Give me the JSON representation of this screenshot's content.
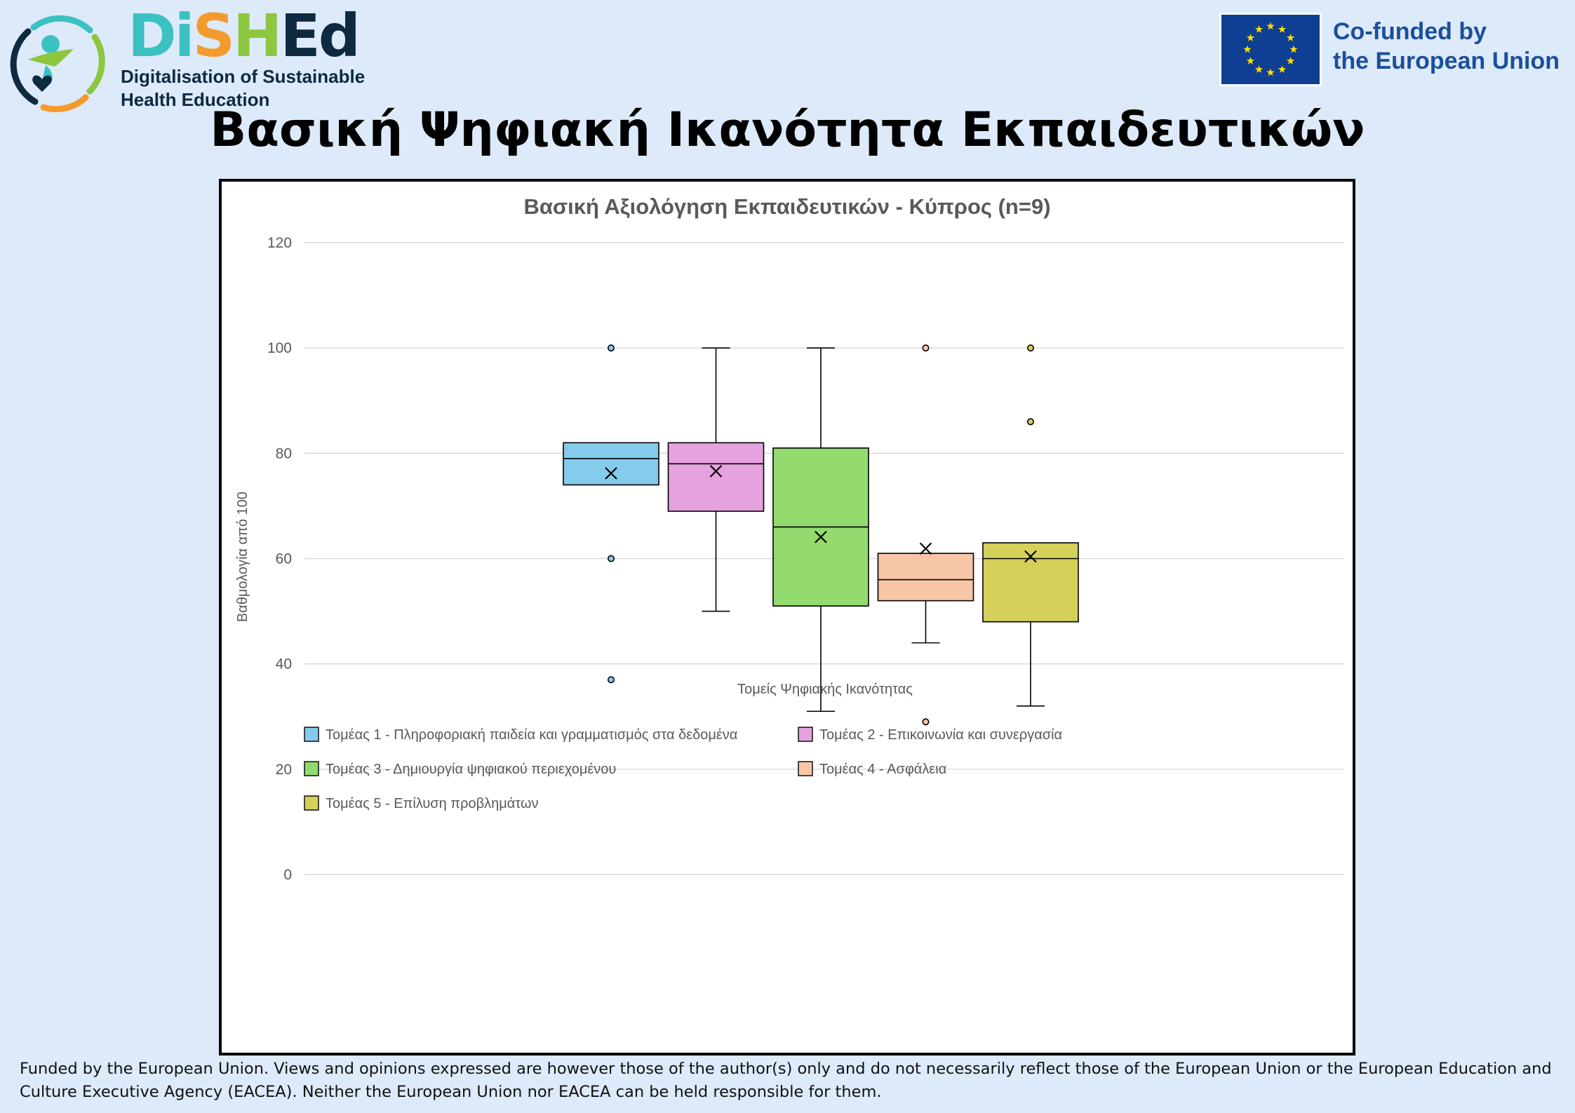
{
  "header": {
    "logo_word_letters": [
      {
        "char": "D",
        "color": "#3cc1c2"
      },
      {
        "char": "i",
        "color": "#3cc1c2"
      },
      {
        "char": "S",
        "color": "#f39a2e"
      },
      {
        "char": "H",
        "color": "#8dc63f"
      },
      {
        "char": "E",
        "color": "#0d2a40"
      },
      {
        "char": "d",
        "color": "#0d2a40"
      }
    ],
    "logo_sub_line1": "Digitalisation of Sustainable",
    "logo_sub_line2": "Health Education",
    "logo_icon": "person-heart-icon",
    "eu_flag_icon": "eu-flag-icon",
    "eu_line1": "Co-funded by",
    "eu_line2": "the European Union"
  },
  "page_title": "Βασική Ψηφιακή Ικανότητα Εκπαιδευτικών",
  "chart_data": {
    "type": "box",
    "title": "Βασική Αξιολόγηση Εκπαιδευτικών - Κύπρος (n=9)",
    "xlabel": "Τομείς Ψηφιακής Ικανότητας",
    "ylabel": "Βαθμολογία από 100",
    "ylim": [
      0,
      120
    ],
    "yticks": [
      "0",
      "20",
      "40",
      "60",
      "80",
      "100",
      "120"
    ],
    "grid": true,
    "legend_position": "bottom",
    "series": [
      {
        "name": "Τομέας 1 - Πληροφοριακή παιδεία και γραμματισμός στα δεδομένα",
        "color": "#85ccec",
        "whisker_low": 74,
        "q1": 74,
        "median": 79,
        "q3": 82,
        "whisker_high": 82,
        "mean": 76.2,
        "outliers": [
          100,
          60,
          37
        ]
      },
      {
        "name": "Τομέας 2 - Επικοινωνία και συνεργασία",
        "color": "#e4a2de",
        "whisker_low": 50,
        "q1": 69,
        "median": 78,
        "q3": 82,
        "whisker_high": 100,
        "mean": 76.6,
        "outliers": []
      },
      {
        "name": "Τομέας 3 - Δημιουργία ψηφιακού περιεχομένου",
        "color": "#93da6f",
        "whisker_low": 31,
        "q1": 51,
        "median": 66,
        "q3": 81,
        "whisker_high": 100,
        "mean": 64.1,
        "outliers": []
      },
      {
        "name": "Τομέας 4 - Ασφάλεια",
        "color": "#f7c6a7",
        "whisker_low": 44,
        "q1": 52,
        "median": 56,
        "q3": 61,
        "whisker_high": 61,
        "mean": 61.9,
        "outliers": [
          100,
          29
        ]
      },
      {
        "name": "Τομέας 5 - Επίλυση προβλημάτων",
        "color": "#d4d05a",
        "whisker_low": 32,
        "q1": 48,
        "median": 60,
        "q3": 63,
        "whisker_high": 63,
        "mean": 60.4,
        "outliers": [
          100,
          86
        ]
      }
    ]
  },
  "footer": {
    "disclaimer": "Funded by the European Union. Views and opinions expressed are however those of the author(s) only and do not necessarily reflect those of the European Union or the European Education and Culture Executive Agency (EACEA). Neither the European Union nor EACEA can be held responsible for them."
  }
}
